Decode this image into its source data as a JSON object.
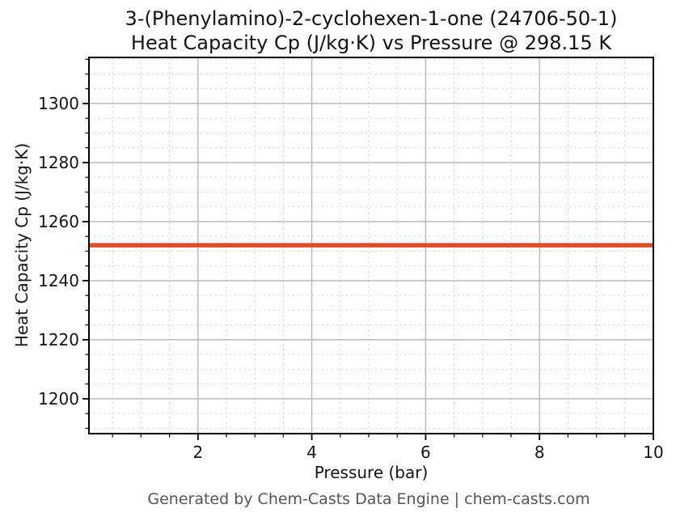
{
  "header": {
    "title_line1": "3-(Phenylamino)-2-cyclohexen-1-one (24706-50-1)",
    "title_line2": "Heat Capacity Cp (J/kg·K) vs Pressure @ 298.15 K"
  },
  "footer": {
    "credit": "Generated by Chem-Casts Data Engine | chem-casts.com"
  },
  "chart_data": {
    "type": "line",
    "title": "3-(Phenylamino)-2-cyclohexen-1-one (24706-50-1)\nHeat Capacity Cp (J/kg·K) vs Pressure @ 298.15 K",
    "xlabel": "Pressure (bar)",
    "ylabel": "Heat Capacity Cp (J/kg·K)",
    "xlim": [
      0.085,
      10
    ],
    "ylim": [
      1188.2,
      1315.6
    ],
    "x_major_ticks": [
      2,
      4,
      6,
      8,
      10
    ],
    "x_minor_interval": 0.5,
    "y_major_ticks": [
      1200,
      1220,
      1240,
      1260,
      1280,
      1300
    ],
    "y_minor_interval": 5,
    "grid": {
      "major": true,
      "minor": true,
      "major_color": "#b3b3b3",
      "minor_color": "#d9d9d9",
      "minor_style": "dashed"
    },
    "legend": "none",
    "series": [
      {
        "name": "Heat Capacity Cp",
        "color": "#d4512b",
        "line_width": 5.5,
        "x": [
          0.1,
          10
        ],
        "y": [
          1252,
          1252
        ]
      }
    ]
  },
  "layout_note": {
    "constant_value_reading": "Cp ≈ 1252 J/kg·K, flat from 0.1 to 10 bar"
  }
}
